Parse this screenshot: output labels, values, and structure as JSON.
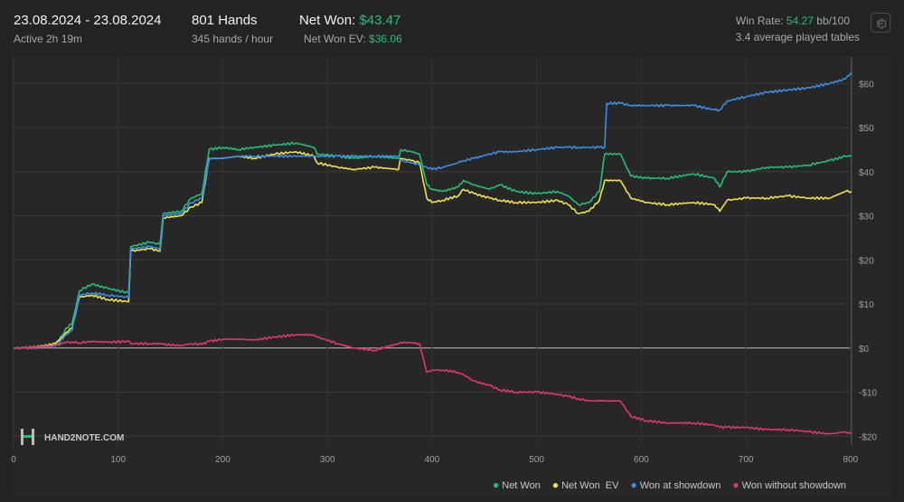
{
  "header": {
    "date_range": "23.08.2024 - 23.08.2024",
    "active": "Active 2h 19m",
    "hands": "801 Hands",
    "hands_per_hour": "345 hands / hour",
    "net_won_label": "Net Won:",
    "net_won_value": "$43.47",
    "net_won_ev_label": "Net Won  EV:",
    "net_won_ev_value": "$36.06",
    "win_rate_label": "Win Rate:",
    "win_rate_value": "54.27",
    "win_rate_unit": "bb/100",
    "avg_tables": "3.4 average played tables"
  },
  "watermark": "HAND2NOTE.COM",
  "colors": {
    "net_won": "#22c074",
    "net_won_ev": "#f0e442",
    "won_at_showdown": "#3a8ee6",
    "won_without_showdown": "#e0366e"
  },
  "chart_data": {
    "type": "line",
    "xlim": [
      0,
      801
    ],
    "ylim": [
      -22,
      66
    ],
    "x_ticks": [
      0,
      100,
      200,
      300,
      400,
      500,
      600,
      700,
      800
    ],
    "x_tick_labels": [
      "0",
      "100",
      "200",
      "300",
      "400",
      "500",
      "600",
      "700",
      "800"
    ],
    "y_ticks": [
      -20,
      -10,
      0,
      10,
      20,
      30,
      40,
      50,
      60
    ],
    "y_tick_labels": [
      "-$20",
      "-$10",
      "$0",
      "$10",
      "$20",
      "$30",
      "$40",
      "$50",
      "$60"
    ],
    "grid": true,
    "legend": "bottom-right",
    "series": [
      {
        "name": "Net Won",
        "color": "#22c074",
        "points": [
          [
            0,
            0
          ],
          [
            10,
            0
          ],
          [
            25,
            0.3
          ],
          [
            40,
            1
          ],
          [
            47,
            3
          ],
          [
            50,
            4.5
          ],
          [
            56,
            5.5
          ],
          [
            63,
            13
          ],
          [
            75,
            14.5
          ],
          [
            90,
            13.5
          ],
          [
            110,
            12.5
          ],
          [
            112,
            23
          ],
          [
            130,
            24
          ],
          [
            140,
            23.5
          ],
          [
            143,
            30.5
          ],
          [
            160,
            31
          ],
          [
            170,
            34
          ],
          [
            180,
            35
          ],
          [
            187,
            45
          ],
          [
            200,
            45.5
          ],
          [
            215,
            45
          ],
          [
            230,
            45.5
          ],
          [
            250,
            46
          ],
          [
            270,
            46.5
          ],
          [
            287,
            45.5
          ],
          [
            290,
            44
          ],
          [
            310,
            43.5
          ],
          [
            325,
            43
          ],
          [
            345,
            43.5
          ],
          [
            368,
            43
          ],
          [
            370,
            45
          ],
          [
            380,
            44.5
          ],
          [
            388,
            44
          ],
          [
            395,
            37
          ],
          [
            400,
            36
          ],
          [
            410,
            35.5
          ],
          [
            425,
            36.5
          ],
          [
            430,
            38
          ],
          [
            440,
            37
          ],
          [
            455,
            36
          ],
          [
            465,
            37
          ],
          [
            480,
            35.5
          ],
          [
            500,
            35
          ],
          [
            520,
            35.5
          ],
          [
            530,
            34.5
          ],
          [
            540,
            32.5
          ],
          [
            550,
            33
          ],
          [
            560,
            35.5
          ],
          [
            565,
            44
          ],
          [
            580,
            44
          ],
          [
            590,
            39
          ],
          [
            605,
            38.5
          ],
          [
            625,
            38.5
          ],
          [
            650,
            39.5
          ],
          [
            670,
            38.5
          ],
          [
            675,
            36.5
          ],
          [
            682,
            40
          ],
          [
            700,
            40
          ],
          [
            720,
            41
          ],
          [
            740,
            41
          ],
          [
            760,
            41.5
          ],
          [
            780,
            42.5
          ],
          [
            795,
            43.5
          ],
          [
            801,
            43.5
          ]
        ]
      },
      {
        "name": "Net Won  EV",
        "color": "#f0e442",
        "points": [
          [
            0,
            0
          ],
          [
            10,
            0
          ],
          [
            25,
            0.3
          ],
          [
            40,
            1
          ],
          [
            47,
            2.5
          ],
          [
            50,
            3.5
          ],
          [
            56,
            4.5
          ],
          [
            63,
            11.5
          ],
          [
            75,
            12
          ],
          [
            90,
            11
          ],
          [
            110,
            10.5
          ],
          [
            112,
            22
          ],
          [
            130,
            22.5
          ],
          [
            140,
            22
          ],
          [
            143,
            29.5
          ],
          [
            160,
            30
          ],
          [
            170,
            32
          ],
          [
            180,
            33
          ],
          [
            187,
            43
          ],
          [
            200,
            43
          ],
          [
            215,
            43.5
          ],
          [
            230,
            43
          ],
          [
            250,
            44
          ],
          [
            270,
            44.5
          ],
          [
            287,
            43.5
          ],
          [
            290,
            42
          ],
          [
            310,
            41
          ],
          [
            325,
            40.5
          ],
          [
            345,
            41
          ],
          [
            368,
            40.5
          ],
          [
            370,
            43
          ],
          [
            380,
            42.5
          ],
          [
            388,
            42
          ],
          [
            395,
            34
          ],
          [
            400,
            33
          ],
          [
            410,
            33.5
          ],
          [
            425,
            34.5
          ],
          [
            430,
            36
          ],
          [
            440,
            35
          ],
          [
            455,
            34
          ],
          [
            465,
            33.5
          ],
          [
            480,
            33
          ],
          [
            500,
            33
          ],
          [
            520,
            33.5
          ],
          [
            530,
            32.5
          ],
          [
            540,
            30.5
          ],
          [
            550,
            31
          ],
          [
            560,
            33.5
          ],
          [
            565,
            38
          ],
          [
            580,
            38
          ],
          [
            590,
            34
          ],
          [
            605,
            33
          ],
          [
            625,
            32.5
          ],
          [
            650,
            33
          ],
          [
            670,
            32.5
          ],
          [
            675,
            31
          ],
          [
            682,
            33.5
          ],
          [
            700,
            34
          ],
          [
            720,
            34
          ],
          [
            740,
            34.5
          ],
          [
            760,
            34
          ],
          [
            780,
            34
          ],
          [
            795,
            35.5
          ],
          [
            801,
            35.5
          ]
        ]
      },
      {
        "name": "Won at showdown",
        "color": "#3a8ee6",
        "points": [
          [
            0,
            0
          ],
          [
            10,
            0
          ],
          [
            25,
            0.1
          ],
          [
            40,
            0.4
          ],
          [
            47,
            2
          ],
          [
            50,
            3
          ],
          [
            56,
            4
          ],
          [
            63,
            12
          ],
          [
            75,
            12.5
          ],
          [
            90,
            12
          ],
          [
            110,
            11.5
          ],
          [
            112,
            22.5
          ],
          [
            130,
            23
          ],
          [
            140,
            22.5
          ],
          [
            143,
            30
          ],
          [
            160,
            30.5
          ],
          [
            170,
            33
          ],
          [
            180,
            34
          ],
          [
            187,
            43
          ],
          [
            200,
            43
          ],
          [
            215,
            43.5
          ],
          [
            230,
            43.5
          ],
          [
            250,
            43.5
          ],
          [
            270,
            43.5
          ],
          [
            287,
            43.5
          ],
          [
            290,
            43.5
          ],
          [
            310,
            43.5
          ],
          [
            325,
            43.5
          ],
          [
            345,
            43.5
          ],
          [
            368,
            43.5
          ],
          [
            370,
            42.5
          ],
          [
            380,
            42
          ],
          [
            388,
            41.5
          ],
          [
            395,
            41
          ],
          [
            400,
            40.5
          ],
          [
            410,
            41
          ],
          [
            425,
            42
          ],
          [
            430,
            42.5
          ],
          [
            440,
            43
          ],
          [
            455,
            44
          ],
          [
            465,
            44.5
          ],
          [
            480,
            44.5
          ],
          [
            500,
            45
          ],
          [
            520,
            45.5
          ],
          [
            530,
            45.5
          ],
          [
            540,
            45.5
          ],
          [
            550,
            45.5
          ],
          [
            560,
            45.5
          ],
          [
            565,
            45.5
          ],
          [
            567,
            55.5
          ],
          [
            580,
            55.5
          ],
          [
            590,
            55
          ],
          [
            605,
            55
          ],
          [
            625,
            55
          ],
          [
            650,
            55
          ],
          [
            670,
            54
          ],
          [
            675,
            54
          ],
          [
            682,
            56
          ],
          [
            700,
            57
          ],
          [
            720,
            58
          ],
          [
            740,
            58.5
          ],
          [
            760,
            59
          ],
          [
            780,
            60
          ],
          [
            795,
            61
          ],
          [
            801,
            62.5
          ]
        ]
      },
      {
        "name": "Won without showdown",
        "color": "#e0366e",
        "points": [
          [
            0,
            0
          ],
          [
            10,
            0
          ],
          [
            25,
            0.2
          ],
          [
            40,
            0.6
          ],
          [
            47,
            1
          ],
          [
            50,
            1.2
          ],
          [
            56,
            1.4
          ],
          [
            63,
            1.2
          ],
          [
            75,
            1.5
          ],
          [
            90,
            1.3
          ],
          [
            110,
            1.5
          ],
          [
            112,
            1
          ],
          [
            130,
            1
          ],
          [
            140,
            1
          ],
          [
            143,
            0.8
          ],
          [
            160,
            0.6
          ],
          [
            170,
            1
          ],
          [
            180,
            0.8
          ],
          [
            187,
            1.5
          ],
          [
            200,
            2
          ],
          [
            215,
            2
          ],
          [
            230,
            1.8
          ],
          [
            250,
            2.5
          ],
          [
            270,
            3
          ],
          [
            287,
            3
          ],
          [
            290,
            2.5
          ],
          [
            310,
            1
          ],
          [
            325,
            0
          ],
          [
            345,
            -0.5
          ],
          [
            368,
            1
          ],
          [
            370,
            1.3
          ],
          [
            380,
            1.2
          ],
          [
            388,
            1
          ],
          [
            395,
            -5.5
          ],
          [
            400,
            -5
          ],
          [
            410,
            -5
          ],
          [
            425,
            -5.5
          ],
          [
            430,
            -6
          ],
          [
            440,
            -7.5
          ],
          [
            455,
            -8.5
          ],
          [
            465,
            -9.5
          ],
          [
            480,
            -10
          ],
          [
            500,
            -10
          ],
          [
            520,
            -10.5
          ],
          [
            530,
            -11
          ],
          [
            540,
            -11.5
          ],
          [
            550,
            -12
          ],
          [
            560,
            -12
          ],
          [
            565,
            -12
          ],
          [
            580,
            -12
          ],
          [
            590,
            -15.5
          ],
          [
            605,
            -16.5
          ],
          [
            625,
            -17
          ],
          [
            650,
            -17
          ],
          [
            670,
            -17.5
          ],
          [
            675,
            -18
          ],
          [
            682,
            -18
          ],
          [
            700,
            -18
          ],
          [
            720,
            -18.5
          ],
          [
            740,
            -18.5
          ],
          [
            760,
            -19
          ],
          [
            780,
            -19.5
          ],
          [
            795,
            -19
          ],
          [
            801,
            -19.5
          ]
        ]
      }
    ]
  }
}
